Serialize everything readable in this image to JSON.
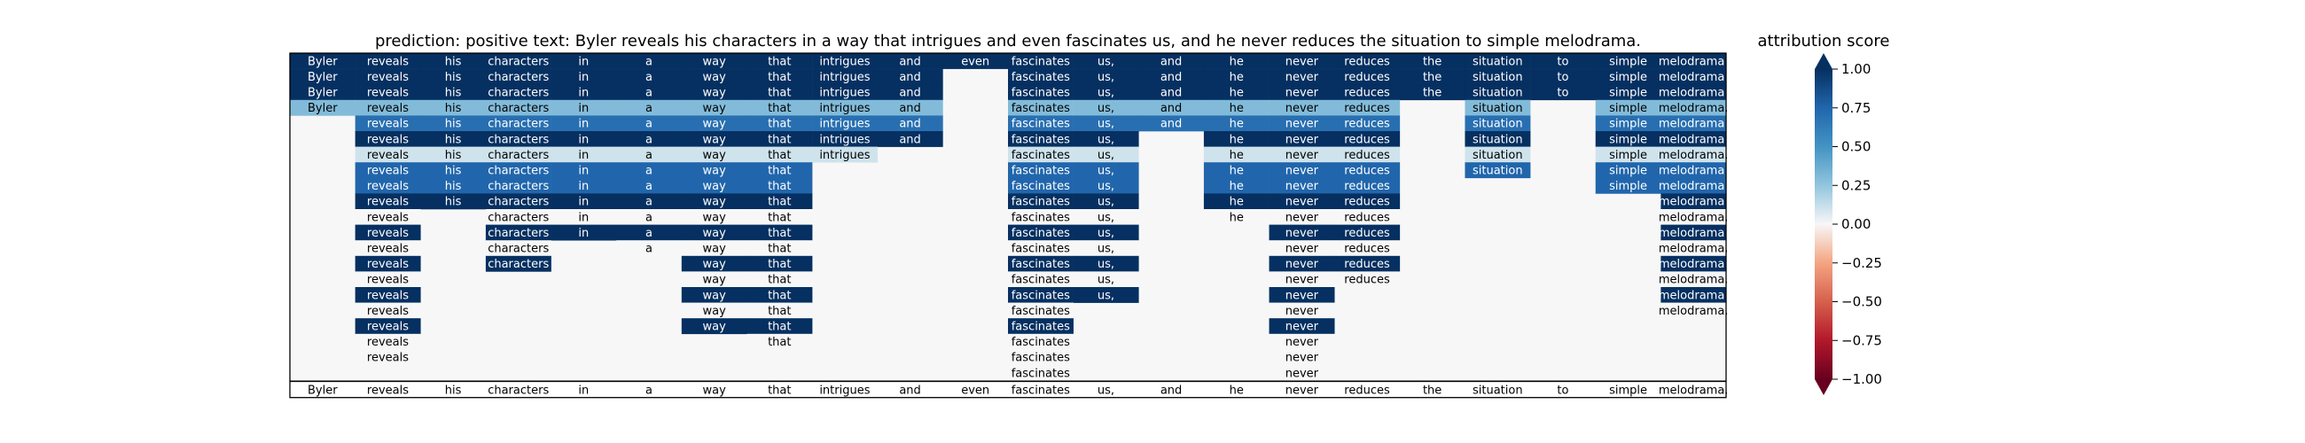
{
  "chart_data": {
    "type": "heatmap",
    "title": "prediction:  positive     text:  Byler reveals his characters in a way that intrigues and even fascinates us, and he never reduces the situation to simple melodrama.",
    "colorbar": {
      "label": "attribution score",
      "ticks": [
        "1.00",
        "0.75",
        "0.50",
        "0.25",
        "0.00",
        "−0.25",
        "−0.50",
        "−0.75",
        "−1.00"
      ],
      "tick_values": [
        1.0,
        0.75,
        0.5,
        0.25,
        0.0,
        -0.25,
        -0.5,
        -0.75,
        -1.0
      ],
      "range": [
        -1.0,
        1.0
      ],
      "extend": "both",
      "colormap": "RdBu"
    },
    "tokens": [
      "Byler",
      "reveals",
      "his",
      "characters",
      "in",
      "a",
      "way",
      "that",
      "intrigues",
      "and",
      "even",
      "fascinates",
      "us,",
      "and",
      "he",
      "never",
      "reduces",
      "the",
      "situation",
      "to",
      "simple",
      "melodrama."
    ],
    "rows": [
      [
        1,
        1,
        1,
        1,
        1,
        1,
        1,
        1,
        1,
        1,
        1,
        1,
        1,
        1,
        1,
        1,
        1,
        1,
        1,
        1,
        1,
        1
      ],
      [
        1,
        1,
        1,
        1,
        1,
        1,
        1,
        1,
        1,
        1,
        null,
        1,
        1,
        1,
        1,
        1,
        1,
        1,
        1,
        1,
        1,
        1
      ],
      [
        1,
        1,
        1,
        1,
        1,
        1,
        1,
        1,
        1,
        1,
        null,
        1,
        1,
        1,
        1,
        1,
        1,
        1,
        1,
        1,
        1,
        1
      ],
      [
        0.3,
        0.3,
        0.3,
        0.3,
        0.3,
        0.3,
        0.3,
        0.3,
        0.3,
        0.3,
        null,
        0.3,
        0.3,
        0.3,
        0.3,
        0.3,
        0.3,
        null,
        0.3,
        null,
        0.3,
        0.3
      ],
      [
        null,
        0.7,
        0.7,
        0.7,
        0.7,
        0.7,
        0.7,
        0.7,
        0.7,
        0.7,
        null,
        0.7,
        0.7,
        0.7,
        0.7,
        0.7,
        0.7,
        null,
        0.7,
        null,
        0.7,
        0.7
      ],
      [
        null,
        1,
        1,
        1,
        1,
        1,
        1,
        1,
        1,
        1,
        null,
        1,
        1,
        null,
        1,
        1,
        1,
        null,
        1,
        null,
        1,
        1
      ],
      [
        null,
        0.1,
        0.1,
        0.1,
        0.1,
        0.1,
        0.1,
        0.1,
        0.1,
        null,
        null,
        0.1,
        0.1,
        null,
        0.1,
        0.1,
        0.1,
        null,
        0.1,
        null,
        0.1,
        0.1
      ],
      [
        null,
        0.75,
        0.75,
        0.75,
        0.75,
        0.75,
        0.75,
        0.75,
        null,
        null,
        null,
        0.75,
        0.75,
        null,
        0.75,
        0.75,
        0.75,
        null,
        0.75,
        null,
        0.75,
        0.75
      ],
      [
        null,
        0.75,
        0.75,
        0.75,
        0.75,
        0.75,
        0.75,
        0.75,
        null,
        null,
        null,
        0.75,
        0.75,
        null,
        0.75,
        0.75,
        0.75,
        null,
        null,
        null,
        0.75,
        0.75
      ],
      [
        null,
        1,
        1,
        1,
        1,
        1,
        1,
        1,
        null,
        null,
        null,
        1,
        1,
        null,
        1,
        1,
        1,
        null,
        null,
        null,
        null,
        1
      ],
      [
        null,
        0,
        null,
        0,
        0,
        0,
        0,
        0,
        null,
        null,
        null,
        0,
        0,
        null,
        0,
        0,
        0,
        null,
        null,
        null,
        null,
        0
      ],
      [
        null,
        1,
        null,
        1,
        1,
        1,
        1,
        1,
        null,
        null,
        null,
        1,
        1,
        null,
        null,
        1,
        1,
        null,
        null,
        null,
        null,
        1
      ],
      [
        null,
        0,
        null,
        0,
        null,
        0,
        0,
        0,
        null,
        null,
        null,
        0,
        0,
        null,
        null,
        0,
        0,
        null,
        null,
        null,
        null,
        0
      ],
      [
        null,
        1,
        null,
        1,
        null,
        null,
        1,
        1,
        null,
        null,
        null,
        1,
        1,
        null,
        null,
        1,
        1,
        null,
        null,
        null,
        null,
        1
      ],
      [
        null,
        0,
        null,
        null,
        null,
        null,
        0,
        0,
        null,
        null,
        null,
        0,
        0,
        null,
        null,
        0,
        0,
        null,
        null,
        null,
        null,
        0
      ],
      [
        null,
        1,
        null,
        null,
        null,
        null,
        1,
        1,
        null,
        null,
        null,
        1,
        1,
        null,
        null,
        1,
        null,
        null,
        null,
        null,
        null,
        1
      ],
      [
        null,
        0,
        null,
        null,
        null,
        null,
        0,
        0,
        null,
        null,
        null,
        0,
        null,
        null,
        null,
        0,
        null,
        null,
        null,
        null,
        null,
        0
      ],
      [
        null,
        1,
        null,
        null,
        null,
        null,
        1,
        1,
        null,
        null,
        null,
        1,
        null,
        null,
        null,
        1,
        null,
        null,
        null,
        null,
        null,
        null
      ],
      [
        null,
        0,
        null,
        null,
        null,
        null,
        null,
        0,
        null,
        null,
        null,
        0,
        null,
        null,
        null,
        0,
        null,
        null,
        null,
        null,
        null,
        null
      ],
      [
        null,
        0,
        null,
        null,
        null,
        null,
        null,
        null,
        null,
        null,
        null,
        0,
        null,
        null,
        null,
        0,
        null,
        null,
        null,
        null,
        null,
        null
      ],
      [
        null,
        null,
        null,
        null,
        null,
        null,
        null,
        null,
        null,
        null,
        null,
        0,
        null,
        null,
        null,
        0,
        null,
        null,
        null,
        null,
        null,
        null
      ]
    ],
    "bottom_row": [
      "Byler",
      "reveals",
      "his",
      "characters",
      "in",
      "a",
      "way",
      "that",
      "intrigues",
      "and",
      "even",
      "fascinates",
      "us,",
      "and",
      "he",
      "never",
      "reduces",
      "the",
      "situation",
      "to",
      "simple",
      "melodrama."
    ]
  }
}
